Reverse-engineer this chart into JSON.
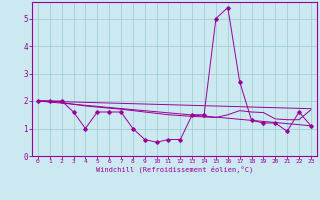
{
  "background_color": "#cce8f0",
  "grid_color": "#99cccc",
  "line_color": "#990099",
  "xlabel": "Windchill (Refroidissement éolien,°C)",
  "xlim": [
    -0.5,
    23.5
  ],
  "ylim": [
    0,
    5.6
  ],
  "yticks": [
    0,
    1,
    2,
    3,
    4,
    5
  ],
  "xticks": [
    0,
    1,
    2,
    3,
    4,
    5,
    6,
    7,
    8,
    9,
    10,
    11,
    12,
    13,
    14,
    15,
    16,
    17,
    18,
    19,
    20,
    21,
    22,
    23
  ],
  "series1_x": [
    0,
    1,
    2,
    3,
    4,
    5,
    6,
    7,
    8,
    9,
    10,
    11,
    12,
    13,
    14,
    15,
    16,
    17,
    18,
    19,
    20,
    21,
    22,
    23
  ],
  "series1_y": [
    2.0,
    2.0,
    2.0,
    1.6,
    1.0,
    1.6,
    1.6,
    1.6,
    1.0,
    0.6,
    0.5,
    0.6,
    0.6,
    1.5,
    1.5,
    5.0,
    5.4,
    2.7,
    1.3,
    1.2,
    1.2,
    0.9,
    1.6,
    1.1
  ],
  "series2_x": [
    0,
    1,
    2,
    3,
    4,
    5,
    6,
    7,
    8,
    9,
    10,
    11,
    12,
    13,
    14,
    15,
    16,
    17,
    18,
    19,
    20,
    21,
    22,
    23
  ],
  "series2_y": [
    2.0,
    2.0,
    1.95,
    1.88,
    1.82,
    1.78,
    1.74,
    1.7,
    1.65,
    1.6,
    1.55,
    1.5,
    1.47,
    1.44,
    1.42,
    1.4,
    1.5,
    1.65,
    1.6,
    1.58,
    1.35,
    1.32,
    1.32,
    1.68
  ],
  "series3_x": [
    0,
    23
  ],
  "series3_y": [
    2.0,
    1.72
  ],
  "series4_x": [
    0,
    23
  ],
  "series4_y": [
    2.0,
    1.1
  ],
  "xlabel_fontsize": 5.0,
  "xtick_fontsize": 4.5,
  "ytick_fontsize": 5.5
}
